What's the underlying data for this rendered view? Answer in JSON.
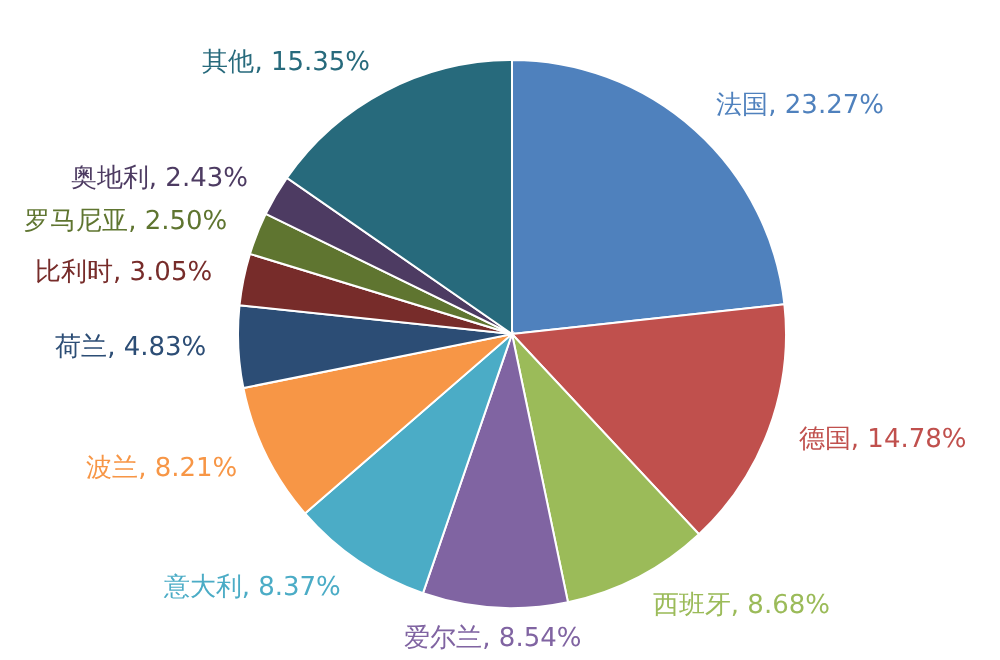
{
  "chart_data": {
    "type": "pie",
    "categories": [
      "法国",
      "德国",
      "西班牙",
      "爱尔兰",
      "意大利",
      "波兰",
      "荷兰",
      "比利时",
      "罗马尼亚",
      "奥地利",
      "其他"
    ],
    "values": [
      23.27,
      14.78,
      8.68,
      8.54,
      8.37,
      8.21,
      4.83,
      3.05,
      2.5,
      2.43,
      15.35
    ],
    "value_labels": [
      "23.27%",
      "14.78%",
      "8.68%",
      "8.54%",
      "8.37%",
      "8.21%",
      "4.83%",
      "3.05%",
      "2.50%",
      "2.43%",
      "15.35%"
    ],
    "colors": [
      "#4f81bd",
      "#c0504d",
      "#9bbb59",
      "#8064a2",
      "#4bacc6",
      "#f79646",
      "#2c4d75",
      "#772c2a",
      "#5f7530",
      "#4d3b62",
      "#276a7c"
    ],
    "legend": false
  }
}
